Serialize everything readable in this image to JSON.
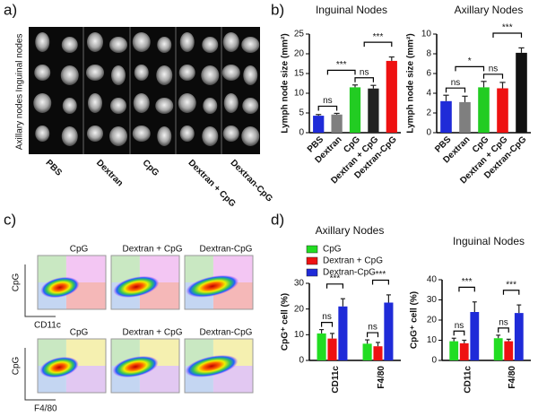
{
  "figure": {
    "panel_labels": [
      "a)",
      "b)",
      "c)",
      "d)"
    ],
    "panel_a": {
      "row_labels": [
        "Inguinal nodes",
        "Axillary nodes"
      ],
      "column_labels": [
        "PBS",
        "Dextran",
        "CpG",
        "Dextran + CpG",
        "Dextran-CpG"
      ]
    },
    "panel_c": {
      "column_titles": [
        "CpG",
        "Dextran + CpG",
        "Dextran-CpG"
      ],
      "y_label": "CpG",
      "x_labels": [
        "CD11c",
        "F4/80"
      ]
    }
  },
  "chart_data": [
    {
      "type": "bar",
      "title": "Inguinal Nodes",
      "y_label": "Lymph node size (mm²)",
      "categories": [
        "PBS",
        "Dextran",
        "CpG",
        "Dextran + CpG",
        "Dextran-CpG"
      ],
      "values": [
        4.3,
        4.6,
        11.5,
        11.2,
        18.2
      ],
      "errors": [
        0.3,
        0.3,
        0.6,
        0.8,
        1.0
      ],
      "colors": [
        "#1f2bd8",
        "#7f7f7f",
        "#22cc22",
        "#222222",
        "#ee1111"
      ],
      "ylim": [
        0,
        25
      ],
      "yticks": [
        0,
        5,
        10,
        15,
        20,
        25
      ],
      "annotations": [
        "ns",
        "***",
        "ns",
        "***"
      ]
    },
    {
      "type": "bar",
      "title": "Axillary Nodes",
      "y_label": "Lymph node size (mm²)",
      "categories": [
        "PBS",
        "Dextran",
        "CpG",
        "Dextran + CpG",
        "Dextran-CpG"
      ],
      "values": [
        3.2,
        3.1,
        4.6,
        4.5,
        8.1
      ],
      "errors": [
        0.6,
        0.6,
        0.6,
        0.6,
        0.5
      ],
      "colors": [
        "#1f2bd8",
        "#7f7f7f",
        "#22cc22",
        "#ee1111",
        "#111111"
      ],
      "ylim": [
        0,
        10
      ],
      "yticks": [
        0,
        2,
        4,
        6,
        8,
        10
      ],
      "annotations": [
        "ns",
        "*",
        "ns",
        "***"
      ]
    },
    {
      "type": "bar",
      "title": "Axillary Nodes",
      "y_label": "CpG⁺ cell (%)",
      "categories": [
        "CD11c",
        "F4/80"
      ],
      "series": [
        {
          "name": "CpG",
          "color": "#22dd22",
          "values": [
            10.5,
            6.5
          ],
          "errors": [
            1.5,
            1.5
          ]
        },
        {
          "name": "Dextran + CpG",
          "color": "#ee1111",
          "values": [
            8.5,
            5.5
          ],
          "errors": [
            2,
            1.5
          ]
        },
        {
          "name": "Dextran-CpG",
          "color": "#1f2bd8",
          "values": [
            21,
            22.5
          ],
          "errors": [
            3,
            3
          ]
        }
      ],
      "ylim": [
        0,
        30
      ],
      "yticks": [
        0,
        10,
        20,
        30
      ],
      "annotations": [
        "ns",
        "***",
        "ns",
        "***"
      ],
      "legend": true
    },
    {
      "type": "bar",
      "title": "Inguinal Nodes",
      "y_label": "CpG⁺ cell (%)",
      "categories": [
        "CD11c",
        "F4/80"
      ],
      "series": [
        {
          "color": "#22dd22",
          "values": [
            9.5,
            11
          ],
          "errors": [
            1.5,
            1.5
          ]
        },
        {
          "color": "#ee1111",
          "values": [
            8.5,
            9.5
          ],
          "errors": [
            1.5,
            1
          ]
        },
        {
          "color": "#1f2bd8",
          "values": [
            24,
            23.5
          ],
          "errors": [
            5,
            4
          ]
        }
      ],
      "ylim": [
        0,
        40
      ],
      "yticks": [
        0,
        10,
        20,
        30,
        40
      ],
      "annotations": [
        "ns",
        "***",
        "ns",
        "***"
      ],
      "legend": false
    }
  ]
}
